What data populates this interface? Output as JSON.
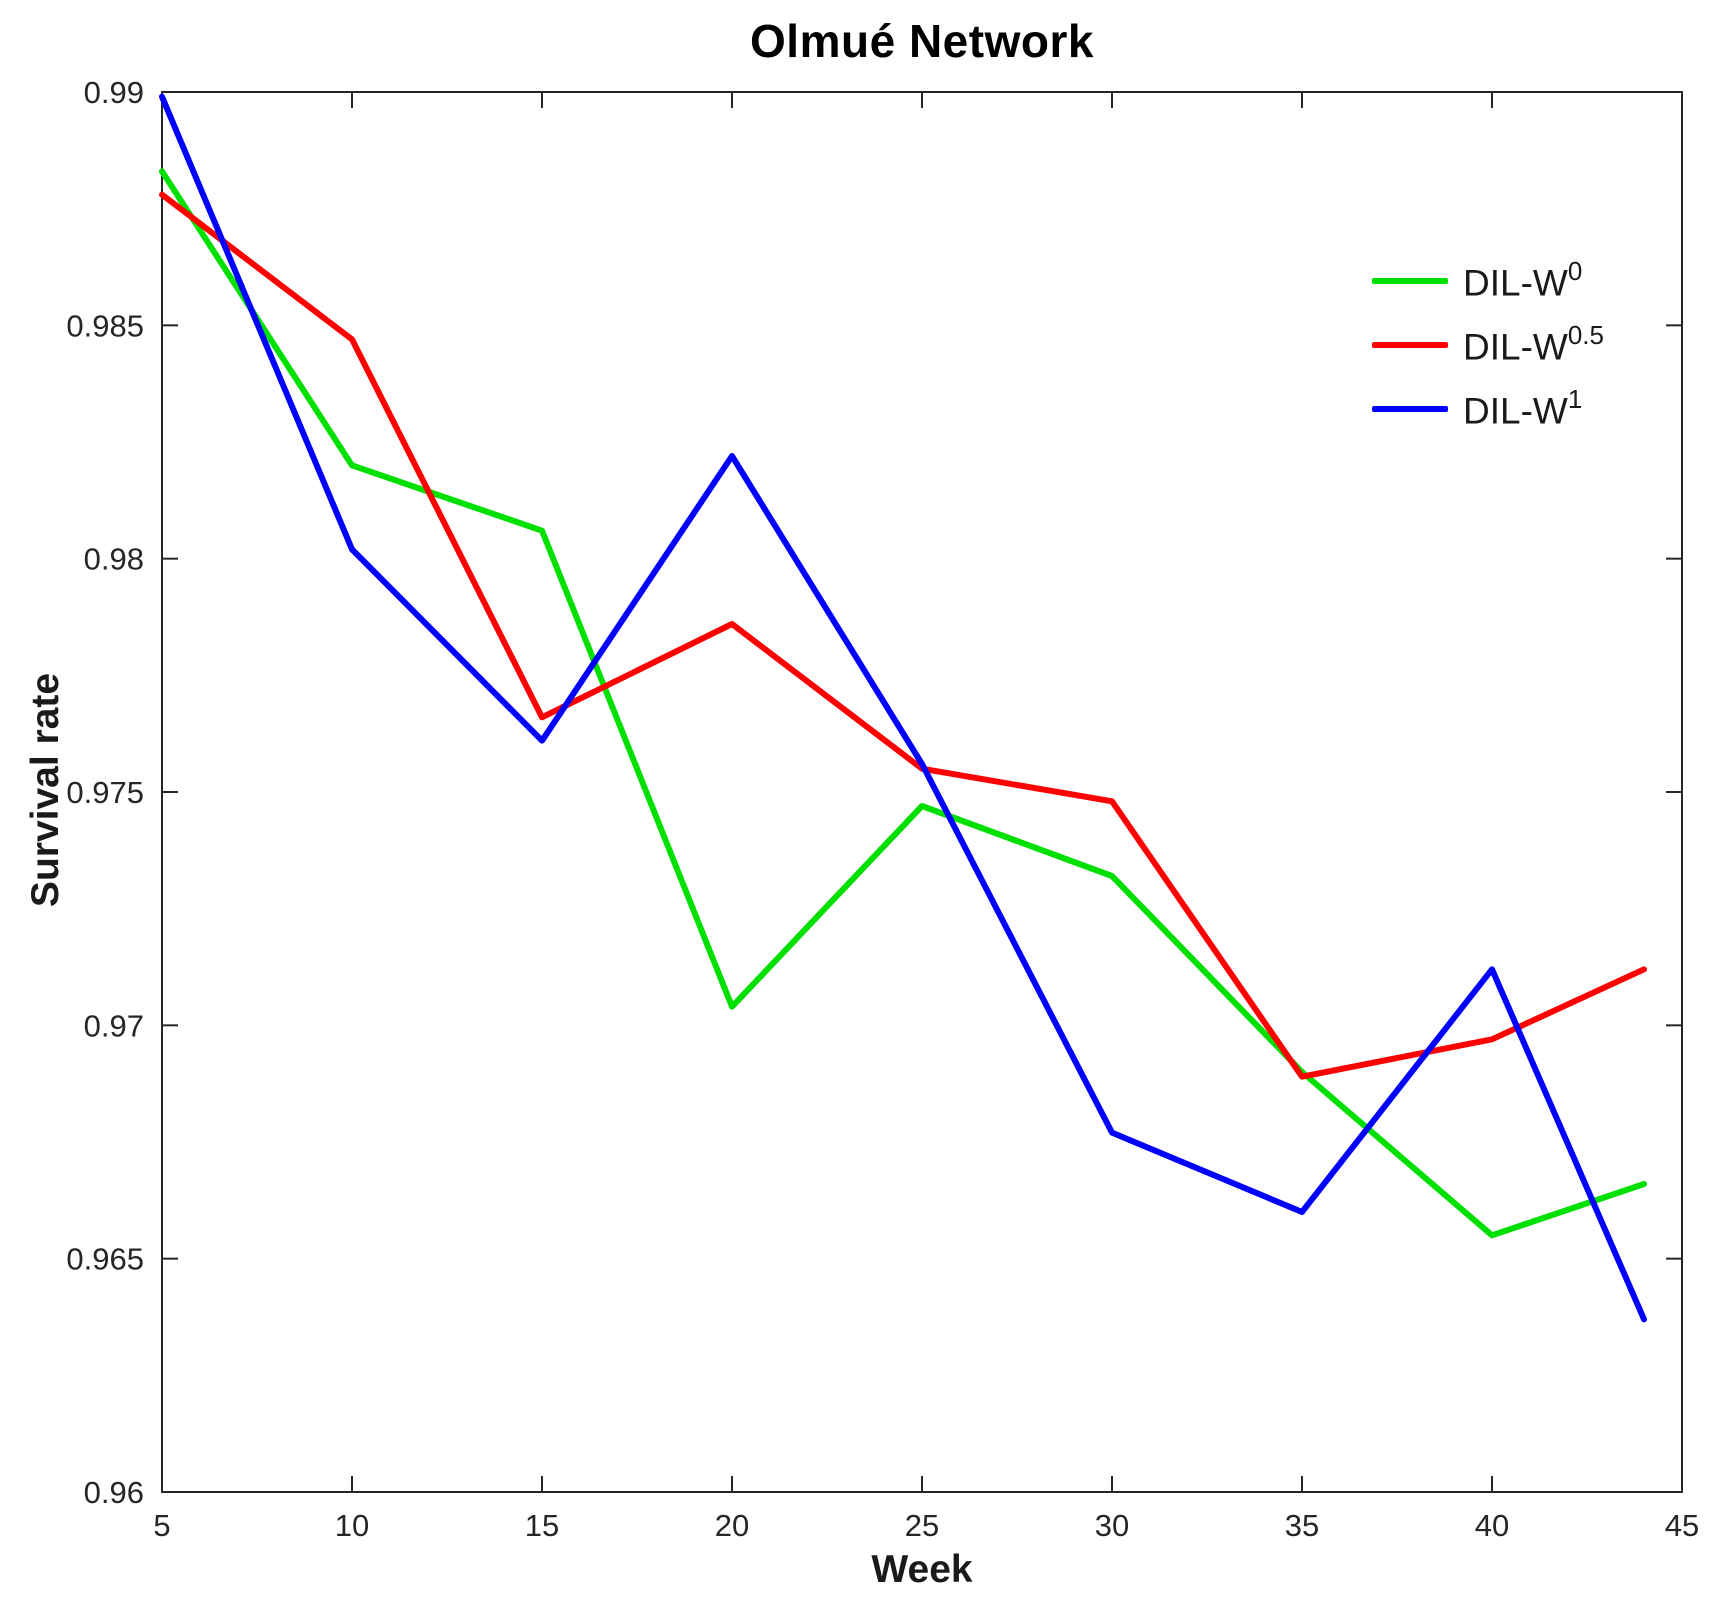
{
  "title": "Olmué Network",
  "axes": {
    "xlabel": "Week",
    "ylabel": "Survival rate"
  },
  "legend": {
    "position": "upper right",
    "entries": [
      {
        "base": "DIL-W",
        "sup": "0",
        "color": "#00e000"
      },
      {
        "base": "DIL-W",
        "sup": "0.5",
        "color": "#ff0000"
      },
      {
        "base": "DIL-W",
        "sup": "1",
        "color": "#0000ff"
      }
    ]
  },
  "chart_data": {
    "type": "line",
    "title": "Olmué Network",
    "xlabel": "Week",
    "ylabel": "Survival rate",
    "xlim": [
      5,
      45
    ],
    "ylim": [
      0.96,
      0.99
    ],
    "x_ticks": [
      5,
      10,
      15,
      20,
      25,
      30,
      35,
      40,
      45
    ],
    "y_ticks": [
      0.96,
      0.965,
      0.97,
      0.975,
      0.98,
      0.985,
      0.99
    ],
    "y_tick_labels": [
      "0.96",
      "0.965",
      "0.97",
      "0.975",
      "0.98",
      "0.985",
      "0.99"
    ],
    "grid": false,
    "legend_position": "upper right",
    "x": [
      5,
      10,
      15,
      20,
      25,
      30,
      35,
      40,
      44
    ],
    "series": [
      {
        "name": "DIL-W^0",
        "color": "#00e000",
        "values": [
          0.9883,
          0.982,
          0.9806,
          0.9704,
          0.9747,
          0.9732,
          0.969,
          0.9655,
          0.9666
        ]
      },
      {
        "name": "DIL-W^0.5",
        "color": "#ff0000",
        "values": [
          0.9878,
          0.9847,
          0.9766,
          0.9786,
          0.9755,
          0.9748,
          0.9689,
          0.9697,
          0.9712
        ]
      },
      {
        "name": "DIL-W^1",
        "color": "#0000ff",
        "values": [
          0.9899,
          0.9802,
          0.9761,
          0.9822,
          0.9756,
          0.9677,
          0.966,
          0.9712,
          0.9637
        ]
      }
    ]
  }
}
